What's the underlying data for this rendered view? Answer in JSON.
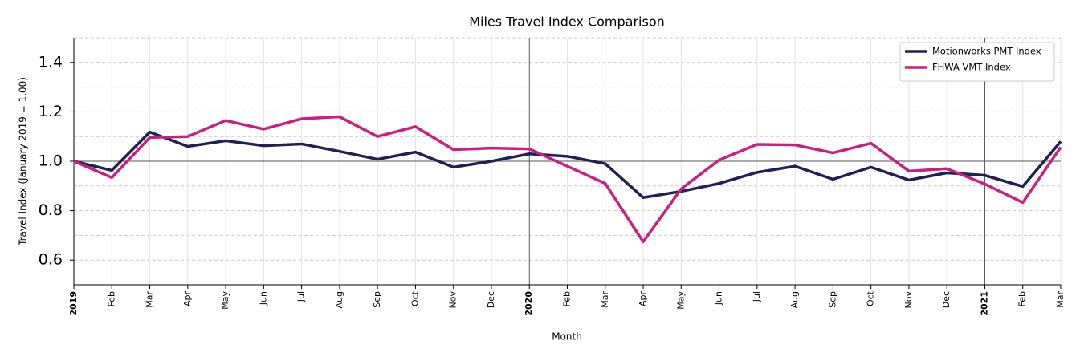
{
  "chart_data": {
    "type": "line",
    "title": "Miles Travel Index Comparison",
    "x_label": "Month",
    "y_label": "Travel Index (January 2019 = 1.00)",
    "categories": [
      "2019",
      "Feb",
      "Mar",
      "Apr",
      "May",
      "Jun",
      "Jul",
      "Aug",
      "Sep",
      "Oct",
      "Nov",
      "Dec",
      "2020",
      "Feb",
      "Mar",
      "Apr",
      "May",
      "Jun",
      "Jul",
      "Aug",
      "Sep",
      "Oct",
      "Nov",
      "Dec",
      "2021",
      "Feb",
      "Mar"
    ],
    "series": [
      {
        "name": "Motionworks PMT Index",
        "color": "#1f2150",
        "values": [
          1.0,
          0.963,
          1.118,
          1.06,
          1.083,
          1.063,
          1.07,
          1.04,
          1.008,
          1.037,
          0.976,
          1.0,
          1.03,
          1.02,
          0.99,
          0.853,
          0.878,
          0.91,
          0.955,
          0.98,
          0.927,
          0.976,
          0.924,
          0.953,
          0.943,
          0.898,
          1.08
        ]
      },
      {
        "name": "FHWA VMT Index",
        "color": "#c91f82",
        "values": [
          1.0,
          0.934,
          1.096,
          1.1,
          1.165,
          1.13,
          1.172,
          1.18,
          1.1,
          1.14,
          1.047,
          1.053,
          1.05,
          0.98,
          0.91,
          0.674,
          0.888,
          1.005,
          1.068,
          1.066,
          1.034,
          1.073,
          0.96,
          0.97,
          0.908,
          0.833,
          1.057
        ]
      }
    ],
    "ylim": [
      0.5,
      1.5
    ],
    "yticks": [
      0.6,
      0.8,
      {
        "value": 1,
        "label": "1.0"
      },
      1.2,
      1.4
    ],
    "minor_yticks": [
      0.5,
      0.7,
      0.9,
      1.1,
      1.3,
      1.5
    ],
    "reference_y": 1,
    "grid": true,
    "legend": "upper right"
  }
}
